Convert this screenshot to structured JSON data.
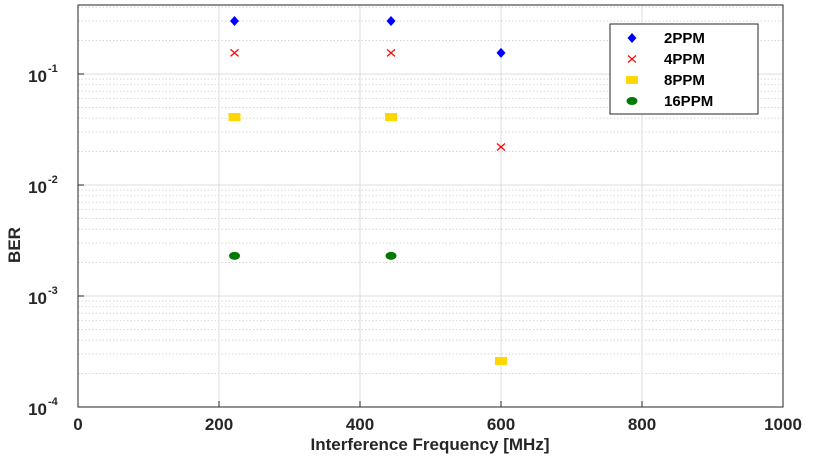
{
  "chart_data": {
    "type": "scatter",
    "xlabel": "Interference Frequency [MHz]",
    "ylabel": "BER",
    "xlim": [
      0,
      1000
    ],
    "ylim": [
      0.0001,
      0.4
    ],
    "y_scale": "log",
    "grid": true,
    "minor_grid": true,
    "legend_position": "top-right",
    "x_ticks": [
      {
        "value": 0,
        "label": "0"
      },
      {
        "value": 200,
        "label": "200"
      },
      {
        "value": 400,
        "label": "400"
      },
      {
        "value": 600,
        "label": "600"
      },
      {
        "value": 800,
        "label": "800"
      },
      {
        "value": 1000,
        "label": "1000"
      }
    ],
    "y_ticks": [
      {
        "value": 0.1,
        "base": "10",
        "exp": "-1"
      },
      {
        "value": 0.01,
        "base": "10",
        "exp": "-2"
      },
      {
        "value": 0.001,
        "base": "10",
        "exp": "-3"
      },
      {
        "value": 0.0001,
        "base": "10",
        "exp": "-4"
      }
    ],
    "series": [
      {
        "name": "2PPM",
        "color": "#0000ff",
        "marker": "diamond",
        "points": [
          {
            "x": 222,
            "y": 0.3
          },
          {
            "x": 444,
            "y": 0.3
          },
          {
            "x": 600,
            "y": 0.155
          }
        ]
      },
      {
        "name": "4PPM",
        "color": "#ff0000",
        "marker": "x",
        "points": [
          {
            "x": 222,
            "y": 0.155
          },
          {
            "x": 444,
            "y": 0.155
          },
          {
            "x": 600,
            "y": 0.022
          }
        ]
      },
      {
        "name": "8PPM",
        "color": "#ffd700",
        "marker": "square",
        "points": [
          {
            "x": 222,
            "y": 0.041
          },
          {
            "x": 444,
            "y": 0.041
          },
          {
            "x": 600,
            "y": 0.00026
          }
        ]
      },
      {
        "name": "16PPM",
        "color": "#007a00",
        "marker": "circle",
        "points": [
          {
            "x": 222,
            "y": 0.0023
          },
          {
            "x": 444,
            "y": 0.0023
          }
        ]
      }
    ]
  }
}
